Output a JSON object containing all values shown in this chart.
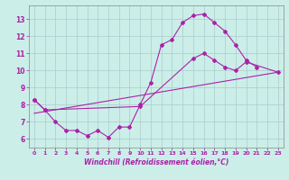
{
  "bg_color": "#cceee8",
  "grid_color": "#aacccc",
  "line_color": "#aa22aa",
  "xlabel": "Windchill (Refroidissement éolien,°C)",
  "xlim": [
    -0.5,
    23.5
  ],
  "ylim": [
    5.5,
    13.8
  ],
  "yticks": [
    6,
    7,
    8,
    9,
    10,
    11,
    12,
    13
  ],
  "line1_x": [
    0,
    1,
    2,
    3,
    4,
    5,
    6,
    7,
    8,
    9,
    10,
    11,
    12,
    13,
    14,
    15,
    16,
    17,
    18,
    19,
    20,
    21
  ],
  "line1_y": [
    8.3,
    7.7,
    7.0,
    6.5,
    6.5,
    6.2,
    6.5,
    6.1,
    6.7,
    6.7,
    8.0,
    9.3,
    11.5,
    11.8,
    12.8,
    13.2,
    13.3,
    12.8,
    12.3,
    11.5,
    10.6,
    10.2
  ],
  "line2_x": [
    0,
    1,
    10,
    15,
    16,
    17,
    18,
    19,
    20,
    23
  ],
  "line2_y": [
    8.3,
    7.7,
    7.9,
    10.7,
    11.0,
    10.6,
    10.2,
    10.0,
    10.5,
    9.9
  ],
  "line3_x": [
    0,
    23
  ],
  "line3_y": [
    7.5,
    9.9
  ]
}
